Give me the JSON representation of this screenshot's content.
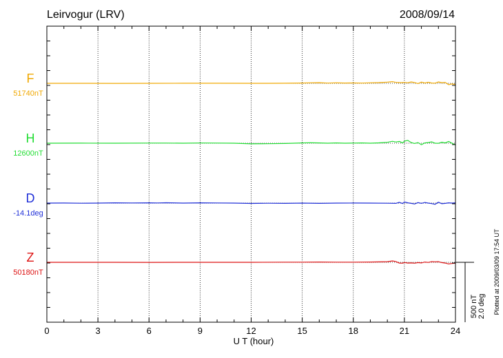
{
  "station": "Leirvogur (LRV)",
  "date": "2008/09/14",
  "footer_note": "Plotted at 2009/03/09 17:54 UT",
  "scale": {
    "nT": "500 nT",
    "deg": "2.0 deg"
  },
  "chart_data": {
    "type": "line",
    "title": "Leirvogur (LRV)",
    "xlabel": "U T (hour)",
    "ylabel": "",
    "xlim": [
      0,
      24
    ],
    "xticks": [
      0,
      3,
      6,
      9,
      12,
      15,
      18,
      21,
      24
    ],
    "xtick_labels": [
      "0",
      "3",
      "6",
      "9",
      "12",
      "15",
      "18",
      "21",
      "24"
    ],
    "grid_x": true,
    "scale_bar_units_offset": 500,
    "series": [
      {
        "name": "F",
        "baseline_label": "51740nT",
        "color": "#f0a800",
        "baseline_offset": 0,
        "points": [
          [
            0,
            0
          ],
          [
            2,
            0
          ],
          [
            4,
            2
          ],
          [
            6,
            0
          ],
          [
            8,
            -2
          ],
          [
            10,
            -2
          ],
          [
            12,
            0
          ],
          [
            13,
            0
          ],
          [
            14,
            -2
          ],
          [
            15,
            -10
          ],
          [
            15.5,
            -15
          ],
          [
            16,
            -20
          ],
          [
            16.5,
            -8
          ],
          [
            17,
            -15
          ],
          [
            17.5,
            -10
          ],
          [
            18,
            -12
          ],
          [
            18.5,
            -8
          ],
          [
            19,
            -15
          ],
          [
            19.5,
            -22
          ],
          [
            20,
            -40
          ],
          [
            20.3,
            -55
          ],
          [
            20.5,
            -30
          ],
          [
            20.8,
            -20
          ],
          [
            21,
            -30
          ],
          [
            21.2,
            -15
          ],
          [
            21.4,
            -45
          ],
          [
            21.6,
            -25
          ],
          [
            21.8,
            10
          ],
          [
            22,
            -40
          ],
          [
            22.2,
            -10
          ],
          [
            22.4,
            -35
          ],
          [
            22.6,
            -10
          ],
          [
            22.8,
            -5
          ],
          [
            23,
            -45
          ],
          [
            23.2,
            -20
          ],
          [
            23.4,
            -30
          ],
          [
            23.6,
            45
          ],
          [
            23.8,
            20
          ],
          [
            24,
            40
          ]
        ]
      },
      {
        "name": "H",
        "baseline_label": "12600nT",
        "color": "#22dd33",
        "baseline_offset": 0,
        "points": [
          [
            0,
            0
          ],
          [
            2,
            -2
          ],
          [
            4,
            0
          ],
          [
            6,
            -5
          ],
          [
            7,
            -5
          ],
          [
            8,
            0
          ],
          [
            9,
            -8
          ],
          [
            10,
            -5
          ],
          [
            11,
            0
          ],
          [
            12,
            20
          ],
          [
            13,
            15
          ],
          [
            14,
            10
          ],
          [
            15,
            -10
          ],
          [
            15.5,
            -15
          ],
          [
            16,
            -10
          ],
          [
            16.5,
            0
          ],
          [
            17,
            -10
          ],
          [
            17.5,
            0
          ],
          [
            18,
            -5
          ],
          [
            18.5,
            -10
          ],
          [
            19,
            0
          ],
          [
            19.5,
            -12
          ],
          [
            20,
            -30
          ],
          [
            20.3,
            -65
          ],
          [
            20.5,
            -40
          ],
          [
            20.7,
            -60
          ],
          [
            20.9,
            -10
          ],
          [
            21,
            -70
          ],
          [
            21.2,
            -95
          ],
          [
            21.4,
            -20
          ],
          [
            21.6,
            10
          ],
          [
            21.8,
            -20
          ],
          [
            22,
            50
          ],
          [
            22.2,
            -10
          ],
          [
            22.4,
            -20
          ],
          [
            22.6,
            -45
          ],
          [
            22.8,
            0
          ],
          [
            23,
            5
          ],
          [
            23.2,
            -35
          ],
          [
            23.4,
            -10
          ],
          [
            23.6,
            -60
          ],
          [
            23.8,
            5
          ],
          [
            24,
            60
          ]
        ]
      },
      {
        "name": "D",
        "baseline_label": "-14.1deg",
        "color": "#1f2fd8",
        "baseline_offset": 0,
        "points": [
          [
            0,
            0
          ],
          [
            1,
            -3
          ],
          [
            2,
            5
          ],
          [
            3,
            0
          ],
          [
            4,
            -10
          ],
          [
            5,
            -5
          ],
          [
            6,
            -10
          ],
          [
            6.5,
            -5
          ],
          [
            7,
            -12
          ],
          [
            8,
            0
          ],
          [
            9,
            -10
          ],
          [
            10,
            -5
          ],
          [
            11,
            0
          ],
          [
            12,
            12
          ],
          [
            13,
            5
          ],
          [
            14,
            10
          ],
          [
            15,
            0
          ],
          [
            16,
            10
          ],
          [
            17,
            0
          ],
          [
            18,
            -3
          ],
          [
            19,
            0
          ],
          [
            20,
            5
          ],
          [
            20.5,
            10
          ],
          [
            20.7,
            -25
          ],
          [
            20.9,
            15
          ],
          [
            21,
            -40
          ],
          [
            21.2,
            -10
          ],
          [
            21.4,
            10
          ],
          [
            21.6,
            30
          ],
          [
            21.8,
            -15
          ],
          [
            22,
            10
          ],
          [
            22.2,
            -20
          ],
          [
            22.4,
            0
          ],
          [
            22.6,
            15
          ],
          [
            22.8,
            40
          ],
          [
            23,
            -30
          ],
          [
            23.2,
            20
          ],
          [
            23.4,
            10
          ],
          [
            23.6,
            -10
          ],
          [
            23.8,
            0
          ],
          [
            24,
            -10
          ]
        ]
      },
      {
        "name": "Z",
        "baseline_label": "50180nT",
        "color": "#dd1111",
        "baseline_offset": 0,
        "points": [
          [
            0,
            0
          ],
          [
            2,
            0
          ],
          [
            4,
            0
          ],
          [
            6,
            3
          ],
          [
            8,
            0
          ],
          [
            10,
            0
          ],
          [
            12,
            0
          ],
          [
            14,
            -5
          ],
          [
            15,
            -5
          ],
          [
            16,
            -10
          ],
          [
            17,
            -5
          ],
          [
            18,
            -5
          ],
          [
            19,
            -10
          ],
          [
            20,
            -20
          ],
          [
            20.3,
            -45
          ],
          [
            20.5,
            -25
          ],
          [
            20.7,
            25
          ],
          [
            20.9,
            30
          ],
          [
            21,
            5
          ],
          [
            21.2,
            25
          ],
          [
            21.4,
            20
          ],
          [
            21.6,
            30
          ],
          [
            21.8,
            10
          ],
          [
            22,
            20
          ],
          [
            22.2,
            -10
          ],
          [
            22.4,
            5
          ],
          [
            22.6,
            -20
          ],
          [
            22.8,
            -15
          ],
          [
            23,
            -20
          ],
          [
            23.2,
            10
          ],
          [
            23.4,
            25
          ],
          [
            23.6,
            55
          ],
          [
            23.8,
            40
          ],
          [
            24,
            30
          ]
        ]
      }
    ]
  }
}
